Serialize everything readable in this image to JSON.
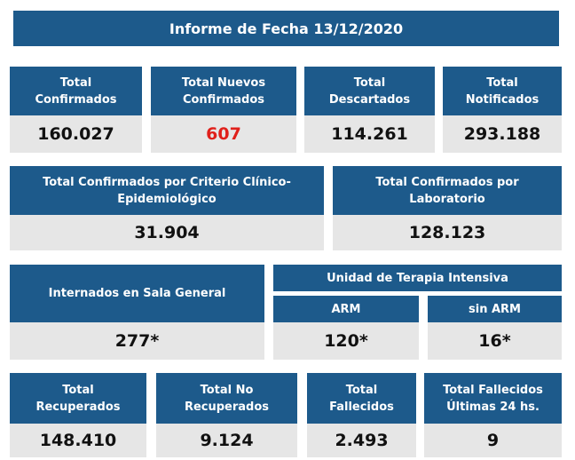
{
  "header": {
    "title": "Informe de Fecha 13/12/2020"
  },
  "cards": [
    {
      "title": [
        "Total",
        "Confirmados"
      ],
      "value": "160.027",
      "color": "#111111"
    },
    {
      "title": [
        "Total Nuevos",
        "Confirmados"
      ],
      "value": "607",
      "color": "#e0201b"
    },
    {
      "title": [
        "Total",
        "Descartados"
      ],
      "value": "114.261",
      "color": "#111111"
    },
    {
      "title": [
        "Total",
        "Notificados"
      ],
      "value": "293.188",
      "color": "#111111"
    },
    {
      "title": [
        "Total Confirmados por Criterio Clínico-",
        "Epidemiológico"
      ],
      "value": "31.904",
      "color": "#111111"
    },
    {
      "title": [
        "Total Confirmados por",
        "Laboratorio"
      ],
      "value": "128.123",
      "color": "#111111"
    },
    {
      "title": [
        "Internados en Sala General"
      ],
      "value": "277*",
      "color": "#111111"
    },
    {
      "title": [
        "Total",
        "Recuperados"
      ],
      "value": "148.410",
      "color": "#111111"
    },
    {
      "title": [
        "Total No",
        "Recuperados"
      ],
      "value": "9.124",
      "color": "#111111"
    },
    {
      "title": [
        "Total",
        "Fallecidos"
      ],
      "value": "2.493",
      "color": "#111111"
    },
    {
      "title": [
        "Total Fallecidos",
        "Últimas 24 hs."
      ],
      "value": "9",
      "color": "#111111"
    }
  ],
  "uti": {
    "title": "Unidad de Terapia Intensiva",
    "items": [
      {
        "title": "ARM",
        "value": "120*",
        "color": "#111111"
      },
      {
        "title": "sin ARM",
        "value": "16*",
        "color": "#111111"
      }
    ]
  }
}
